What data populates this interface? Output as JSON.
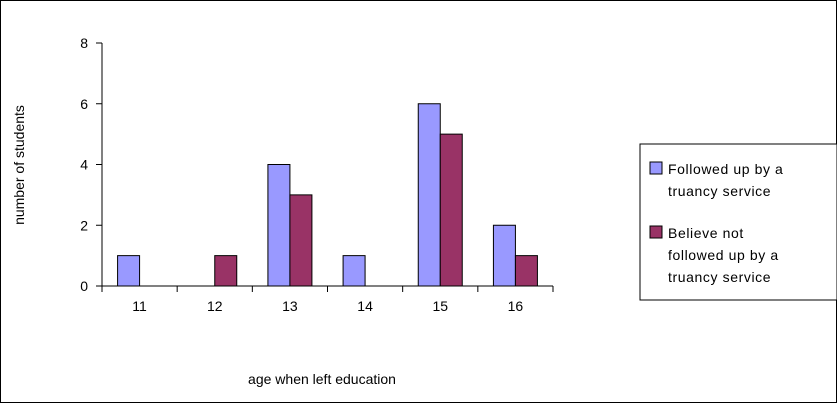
{
  "chart_data": {
    "type": "bar",
    "title": "",
    "xlabel": "age when left education",
    "ylabel": "number of students",
    "categories": [
      "11",
      "12",
      "13",
      "14",
      "15",
      "16"
    ],
    "ylim": [
      0,
      8
    ],
    "yticks": [
      "0",
      "2",
      "4",
      "6",
      "8"
    ],
    "grid": false,
    "legend_position": "right",
    "series": [
      {
        "name": "Followed up by a truancy service",
        "legend_lines": [
          "Followed up by a",
          "truancy service"
        ],
        "color": "#9999ff",
        "values": [
          1,
          0,
          4,
          1,
          6,
          2
        ]
      },
      {
        "name": "Believe not followed up by a truancy service",
        "legend_lines": [
          "Believe not",
          "followed up by a",
          "truancy service"
        ],
        "color": "#993366",
        "values": [
          0,
          1,
          3,
          0,
          5,
          1
        ]
      }
    ]
  }
}
